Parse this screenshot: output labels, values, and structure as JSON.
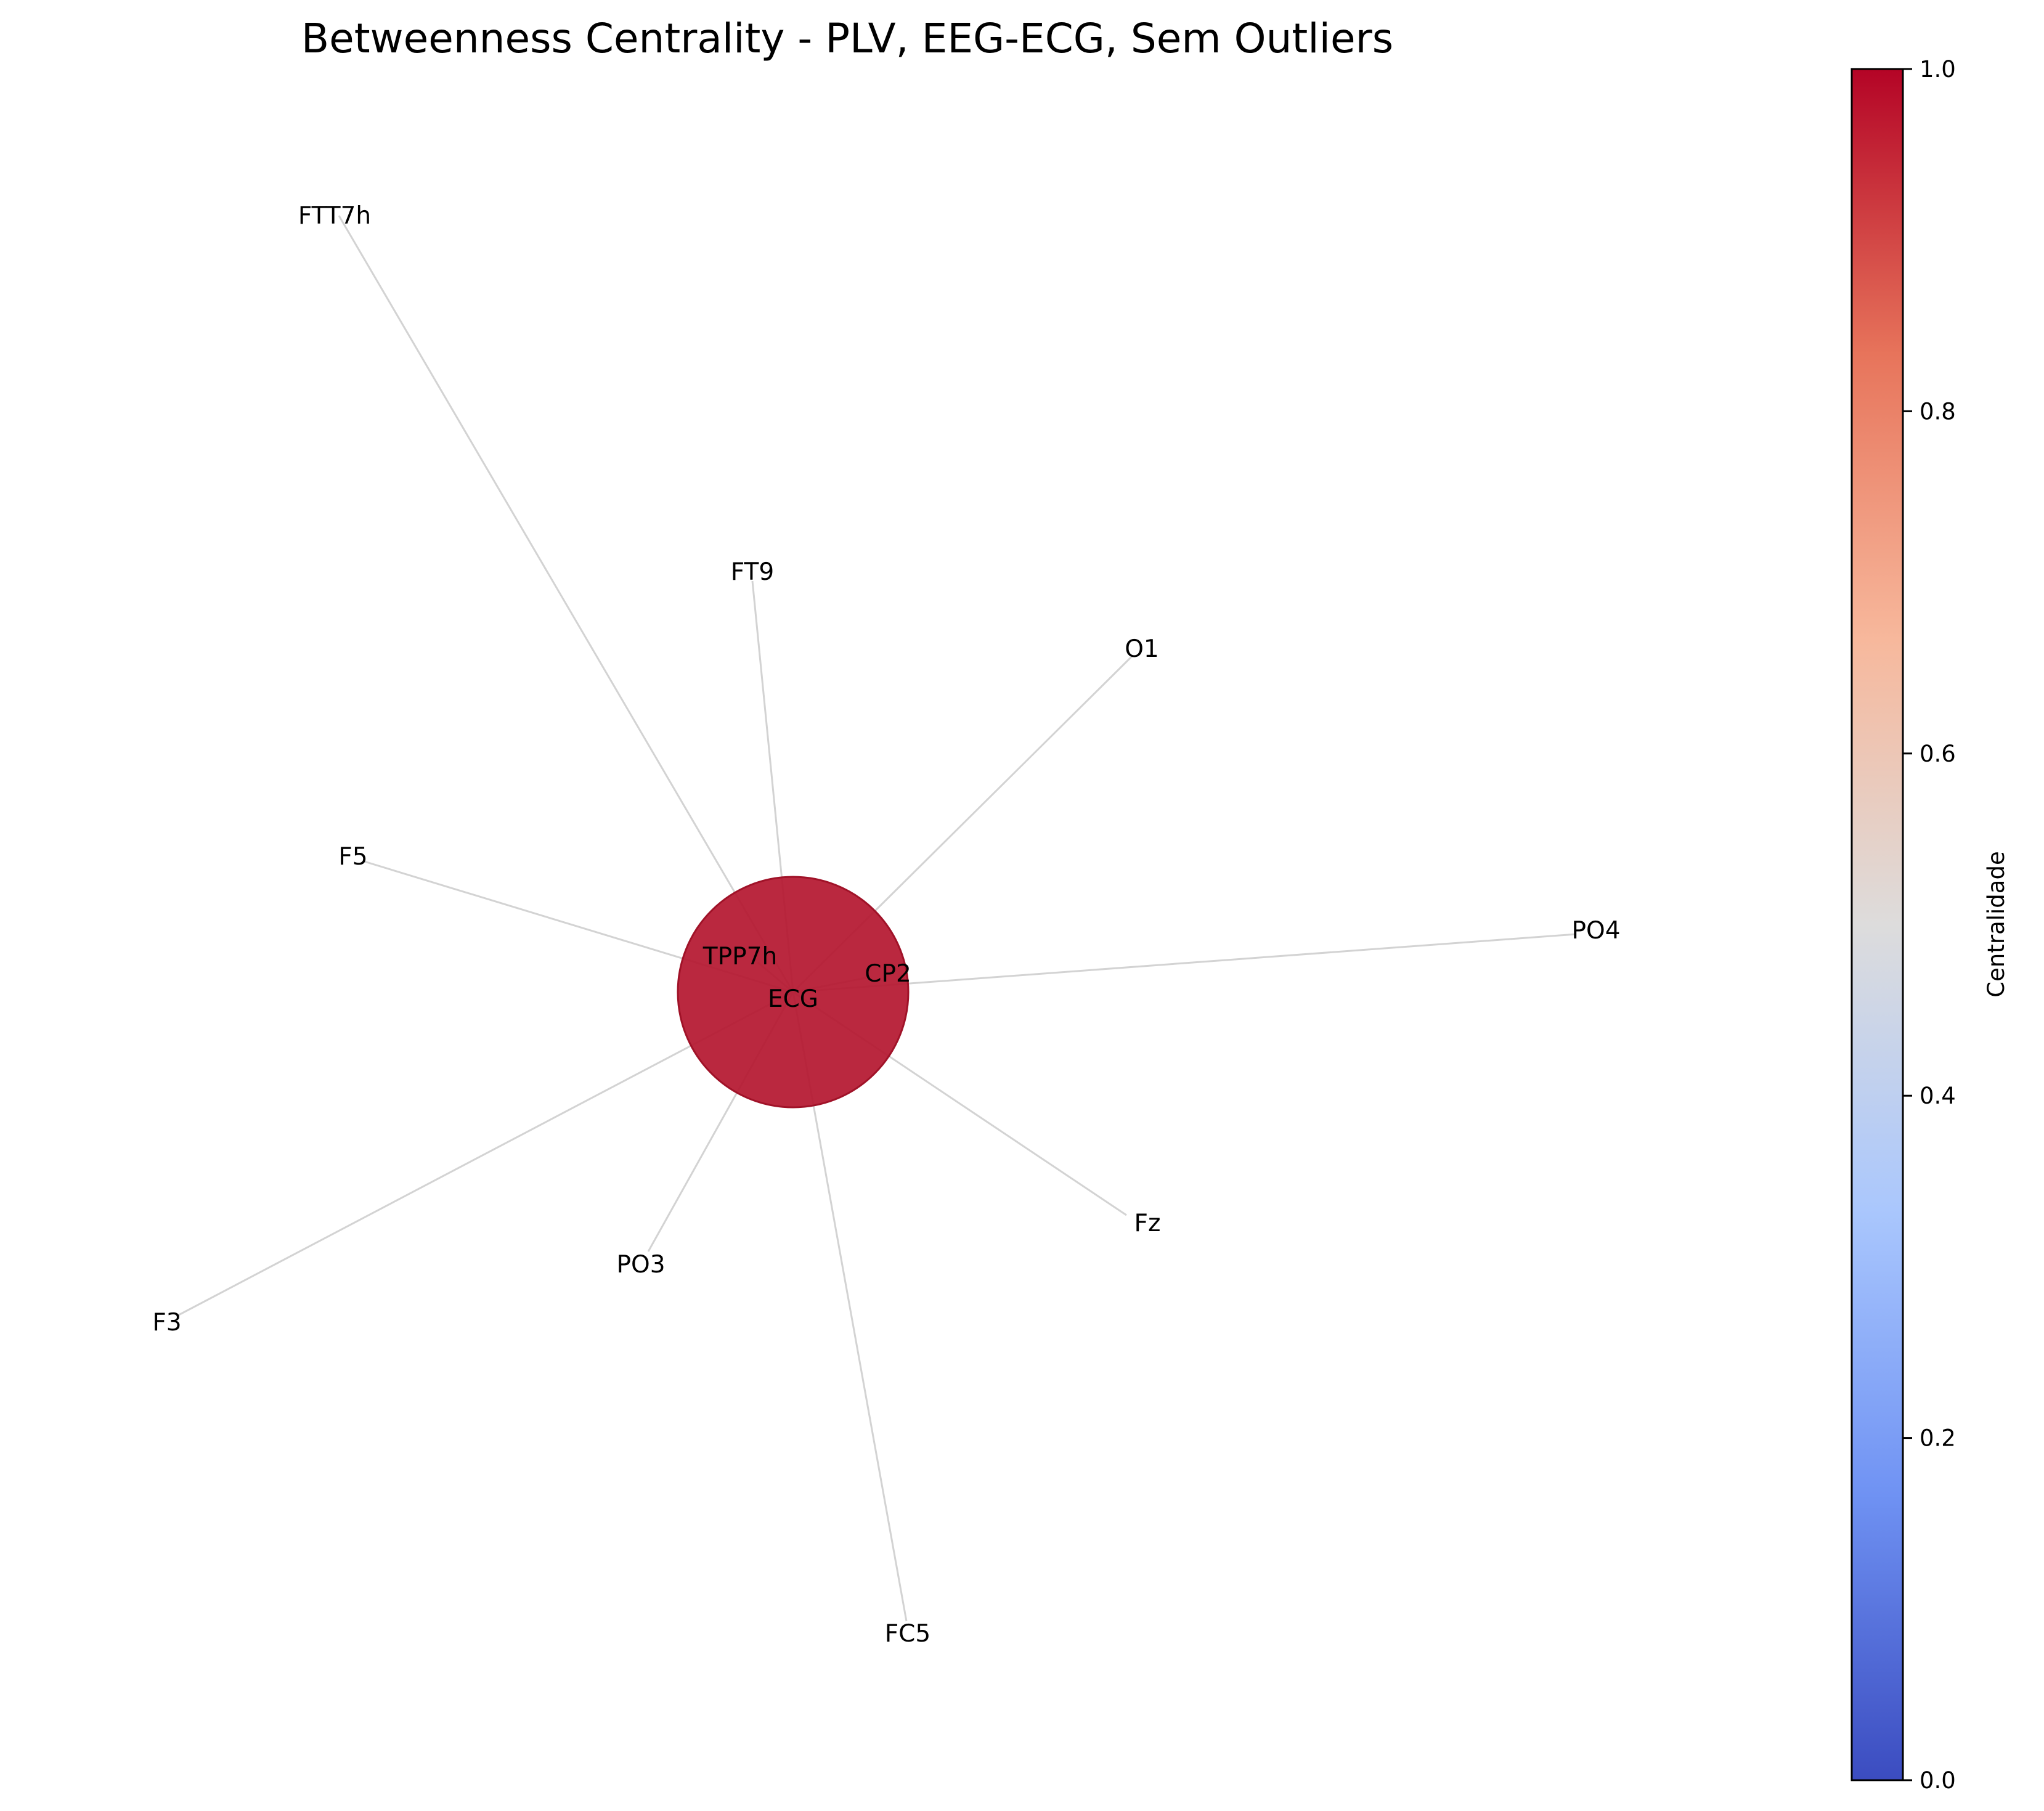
{
  "title": "Betweenness Centrality - PLV, EEG-ECG, Sem Outliers",
  "graph": {
    "hub": "ECG",
    "hub_centrality": 1.0,
    "hub_color": "#b4162f",
    "edge_color": "#d3d3d3",
    "nodes": [
      "ECG",
      "TPP7h",
      "CP2",
      "FTT7h",
      "FT9",
      "O1",
      "F5",
      "PO4",
      "F3",
      "PO3",
      "Fz",
      "FC5"
    ],
    "edges": [
      [
        "ECG",
        "FTT7h"
      ],
      [
        "ECG",
        "FT9"
      ],
      [
        "ECG",
        "O1"
      ],
      [
        "ECG",
        "F5"
      ],
      [
        "ECG",
        "PO4"
      ],
      [
        "ECG",
        "F3"
      ],
      [
        "ECG",
        "PO3"
      ],
      [
        "ECG",
        "Fz"
      ],
      [
        "ECG",
        "FC5"
      ],
      [
        "ECG",
        "TPP7h"
      ],
      [
        "ECG",
        "CP2"
      ]
    ]
  },
  "colorbar": {
    "label": "Centralidade",
    "colormap": "coolwarm",
    "range": [
      0.0,
      1.0
    ],
    "ticks": [
      "0.0",
      "0.2",
      "0.4",
      "0.6",
      "0.8",
      "1.0"
    ],
    "color_stops": [
      "#3b4cc0",
      "#6f92f3",
      "#aac7fd",
      "#dddcdc",
      "#f7b89c",
      "#e7745b",
      "#b40426"
    ]
  }
}
